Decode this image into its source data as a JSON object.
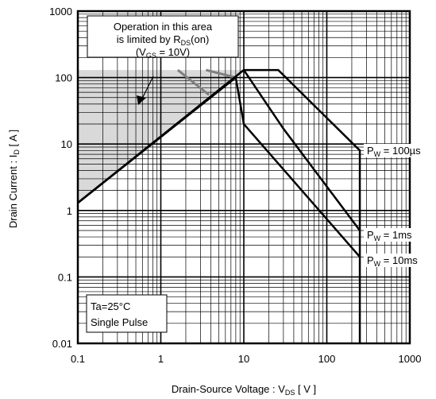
{
  "chart_data": {
    "type": "line",
    "x_scale": "log",
    "y_scale": "log",
    "xlim": [
      0.1,
      1000
    ],
    "ylim": [
      0.01,
      1000
    ],
    "grid": true,
    "x_ticks": [
      "0.1",
      "1",
      "10",
      "100",
      "1000"
    ],
    "y_ticks": [
      "0.01",
      "0.1",
      "1",
      "10",
      "100",
      "1000"
    ],
    "xlabel": {
      "main": "Drain-Source  Voltage : V",
      "sub": "DS",
      "unit": " [ V ]"
    },
    "ylabel": {
      "main": "Drain  Current : I",
      "sub": "D",
      "unit": " [ A ]"
    },
    "region_note": {
      "line1": "Operation in this area",
      "line2_main": "is limited by R",
      "line2_sub": "DS",
      "line2_tail": "(on)",
      "line3_pre": "(V",
      "line3_sub": "GS",
      "line3_tail": " = 10V)"
    },
    "conditions": [
      "Ta=25°C",
      "Single Pulse"
    ],
    "rds_limit_line": {
      "x": [
        0.1,
        10
      ],
      "y": [
        1.3,
        130
      ]
    },
    "series": [
      {
        "name": "P_W = 100µs",
        "label_main": "P",
        "label_sub": "W",
        "label_tail": " = 100µs",
        "x": [
          0.1,
          10,
          26,
          250,
          250
        ],
        "y": [
          1.3,
          130,
          130,
          8,
          0.01
        ]
      },
      {
        "name": "P_W = 1ms",
        "label_main": "P",
        "label_sub": "W",
        "label_tail": " = 1ms",
        "x": [
          0.1,
          10,
          30,
          250
        ],
        "y": [
          1.3,
          130,
          17,
          0.5
        ]
      },
      {
        "name": "P_W = 10ms",
        "label_main": "P",
        "label_sub": "W",
        "label_tail": " = 10ms",
        "x": [
          0.1,
          8,
          10,
          250
        ],
        "y": [
          1.3,
          100,
          20,
          0.2
        ]
      }
    ],
    "gray_continuation": [
      {
        "x": [
          1.6,
          3.8
        ],
        "y": [
          130,
          55
        ]
      },
      {
        "x": [
          3.5,
          8
        ],
        "y": [
          130,
          100
        ]
      }
    ],
    "current_limit": {
      "x": [
        0.1,
        26
      ],
      "y": [
        130,
        130
      ]
    },
    "colors": {
      "line": "#000000",
      "shade": "#d9d9d9",
      "gray_line": "#808080",
      "grid": "#000000"
    }
  }
}
